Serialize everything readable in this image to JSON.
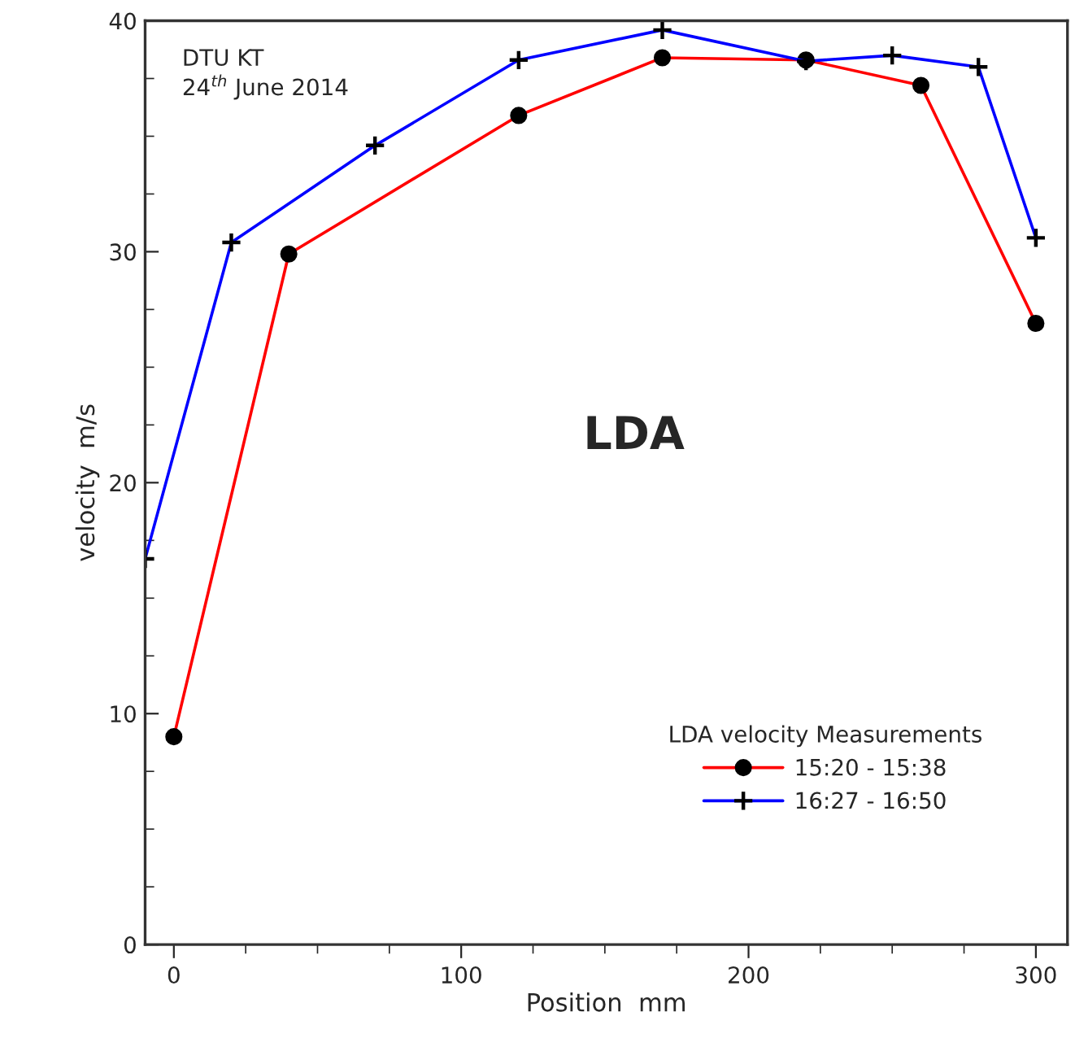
{
  "chart_data": {
    "type": "line",
    "xlabel": "Position  mm",
    "ylabel": "velocity  m/s",
    "legend_title": "LDA velocity Measurements",
    "legend": "bottom right",
    "grid": false,
    "xlim": [
      -10,
      311
    ],
    "xticks": [
      0,
      100,
      200,
      300
    ],
    "ylim": [
      0,
      40
    ],
    "yticks": [
      0,
      10,
      20,
      30,
      40
    ],
    "annotations": [
      "DTU KT\n24$^{th}$ June 2014",
      "LDA"
    ],
    "series": [
      {
        "name": "15:20 - 15:38",
        "color": "#ff0000",
        "marker": "circle",
        "x": [
          0,
          40,
          120,
          170,
          220,
          260,
          300
        ],
        "values": [
          9.0,
          29.9,
          35.9,
          38.4,
          38.3,
          37.2,
          26.9
        ]
      },
      {
        "name": "16:27 - 16:50",
        "color": "#0000ff",
        "marker": "cross",
        "x": [
          -10,
          20,
          70,
          120,
          170,
          220,
          250,
          280,
          300
        ],
        "values": [
          16.7,
          30.4,
          34.6,
          38.3,
          39.6,
          38.25,
          38.5,
          38.0,
          30.6
        ]
      }
    ]
  }
}
